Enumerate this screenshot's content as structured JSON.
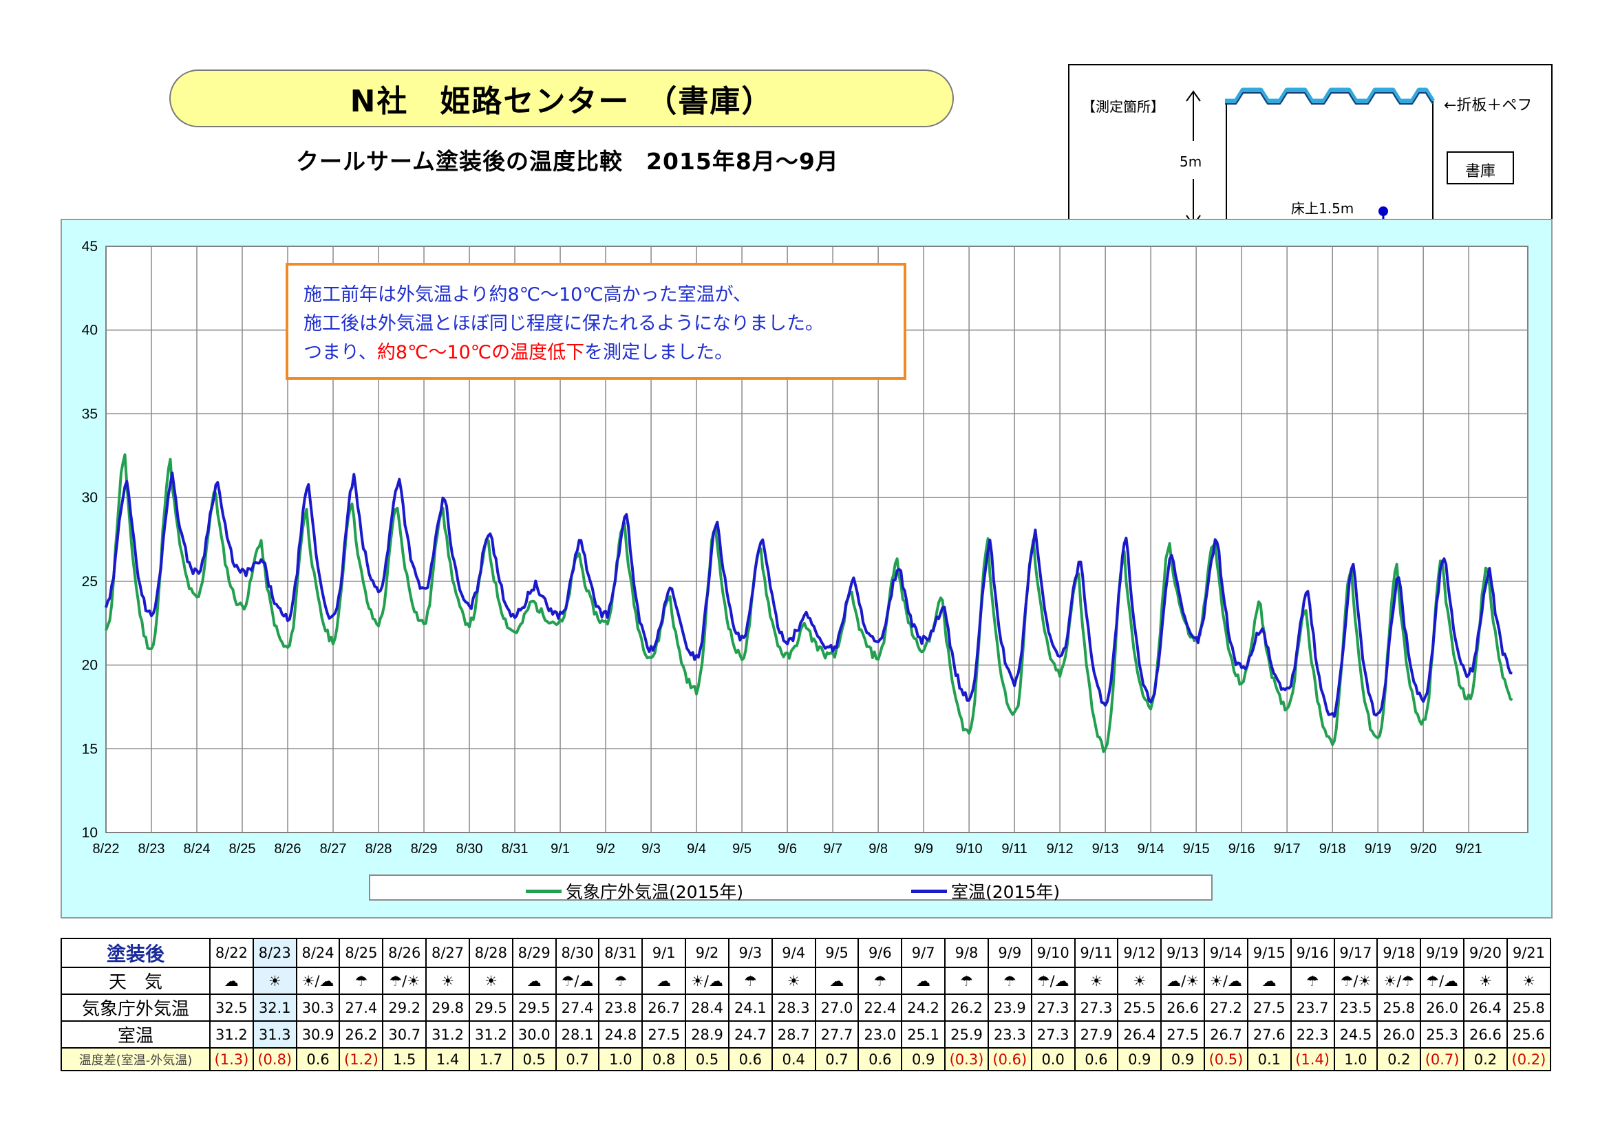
{
  "title": "N社　姫路センター　（書庫）",
  "subtitle": "クールサーム塗装後の温度比較　2015年8月～9月",
  "diagram": {
    "label": "【測定箇所】",
    "roof_label": "←折板＋ペフ",
    "height_label": "5m",
    "room_label": "書庫",
    "sensor_label": "床上1.5m",
    "colors": {
      "roof": "#33aadd",
      "sensor": "#0000cc"
    }
  },
  "callout": {
    "line1": "施工前年は外気温より約8℃～10℃高かった室温が、",
    "line2": "施工後は外気温とほぼ同じ程度に保たれるようになりました。",
    "line3_a": "つまり、",
    "line3_b": "約8℃～10℃の温度低下",
    "line3_c": "を測定しました。"
  },
  "chart_data": {
    "type": "line",
    "title": "",
    "xlabel": "",
    "ylabel": "",
    "ylim": [
      10,
      45
    ],
    "yticks": [
      "45",
      "40",
      "35",
      "30",
      "25",
      "20",
      "15",
      "10"
    ],
    "categories": [
      "8/22",
      "8/23",
      "8/24",
      "8/25",
      "8/26",
      "8/27",
      "8/28",
      "8/29",
      "8/30",
      "8/31",
      "9/1",
      "9/2",
      "9/3",
      "9/4",
      "9/5",
      "9/6",
      "9/7",
      "9/8",
      "9/9",
      "9/10",
      "9/11",
      "9/12",
      "9/13",
      "9/14",
      "9/15",
      "9/16",
      "9/17",
      "9/18",
      "9/19",
      "9/20",
      "9/21"
    ],
    "grid": true,
    "legend_position": "bottom",
    "series": [
      {
        "name": "気象庁外気温(2015年)",
        "color": "#22a050",
        "daily_max": [
          32.5,
          32.1,
          30.3,
          27.4,
          29.2,
          29.8,
          29.5,
          29.5,
          27.4,
          23.8,
          26.7,
          28.4,
          24.1,
          28.3,
          27.0,
          22.4,
          24.2,
          26.2,
          23.9,
          27.3,
          27.3,
          25.5,
          26.6,
          27.2,
          27.5,
          23.7,
          23.5,
          25.8,
          26.0,
          26.4,
          25.8
        ],
        "daily_min": [
          22.0,
          21.0,
          24.0,
          23.5,
          21.0,
          21.5,
          22.5,
          22.5,
          22.5,
          22.0,
          22.5,
          22.5,
          20.5,
          18.5,
          20.5,
          20.5,
          20.5,
          20.5,
          21.0,
          16.0,
          17.0,
          19.5,
          15.0,
          17.5,
          21.5,
          19.0,
          17.5,
          15.5,
          15.5,
          16.5,
          18.0
        ]
      },
      {
        "name": "室温(2015年)",
        "color": "#1a1acc",
        "daily_max": [
          31.2,
          31.3,
          30.9,
          26.2,
          30.7,
          31.2,
          31.2,
          30.0,
          28.1,
          24.8,
          27.5,
          28.9,
          24.7,
          28.7,
          27.7,
          23.0,
          25.1,
          25.9,
          23.3,
          27.3,
          27.9,
          26.4,
          27.5,
          26.7,
          27.6,
          22.3,
          24.5,
          26.0,
          25.3,
          26.6,
          25.6
        ],
        "daily_min": [
          23.5,
          23.0,
          25.5,
          25.5,
          22.8,
          22.8,
          24.5,
          24.5,
          23.5,
          23.0,
          23.0,
          23.0,
          21.0,
          20.5,
          21.5,
          21.5,
          21.0,
          21.3,
          21.5,
          18.0,
          19.0,
          20.5,
          17.8,
          18.0,
          21.5,
          19.8,
          18.5,
          17.0,
          17.0,
          18.0,
          19.5
        ]
      }
    ]
  },
  "legend": {
    "outdoor": "気象庁外気温(2015年)",
    "indoor": "室温(2015年)"
  },
  "table": {
    "header_label": "塗装後",
    "weather_label": "天　気",
    "outdoor_label": "気象庁外気温",
    "indoor_label": "室温",
    "diff_label": "温度差(室温-外気温)",
    "dates": [
      "8/22",
      "8/23",
      "8/24",
      "8/25",
      "8/26",
      "8/27",
      "8/28",
      "8/29",
      "8/30",
      "8/31",
      "9/1",
      "9/2",
      "9/3",
      "9/4",
      "9/5",
      "9/6",
      "9/7",
      "9/8",
      "9/9",
      "9/10",
      "9/11",
      "9/12",
      "9/13",
      "9/14",
      "9/15",
      "9/16",
      "9/17",
      "9/18",
      "9/19",
      "9/20",
      "9/21"
    ],
    "weather": [
      "☁",
      "☀",
      "☀/☁",
      "☂",
      "☂/☀",
      "☀",
      "☀",
      "☁",
      "☂/☁",
      "☂",
      "☁",
      "☀/☁",
      "☂",
      "☀",
      "☁",
      "☂",
      "☁",
      "☂",
      "☂",
      "☂/☁",
      "☀",
      "☀",
      "☁/☀",
      "☀/☁",
      "☁",
      "☂",
      "☂/☀",
      "☀/☂",
      "☂/☁",
      "☀",
      "☀"
    ],
    "outdoor": [
      "32.5",
      "32.1",
      "30.3",
      "27.4",
      "29.2",
      "29.8",
      "29.5",
      "29.5",
      "27.4",
      "23.8",
      "26.7",
      "28.4",
      "24.1",
      "28.3",
      "27.0",
      "22.4",
      "24.2",
      "26.2",
      "23.9",
      "27.3",
      "27.3",
      "25.5",
      "26.6",
      "27.2",
      "27.5",
      "23.7",
      "23.5",
      "25.8",
      "26.0",
      "26.4",
      "25.8"
    ],
    "indoor": [
      "31.2",
      "31.3",
      "30.9",
      "26.2",
      "30.7",
      "31.2",
      "31.2",
      "30.0",
      "28.1",
      "24.8",
      "27.5",
      "28.9",
      "24.7",
      "28.7",
      "27.7",
      "23.0",
      "25.1",
      "25.9",
      "23.3",
      "27.3",
      "27.9",
      "26.4",
      "27.5",
      "26.7",
      "27.6",
      "22.3",
      "24.5",
      "26.0",
      "25.3",
      "26.6",
      "25.6"
    ],
    "diff": [
      "(1.3)",
      "(0.8)",
      "0.6",
      "(1.2)",
      "1.5",
      "1.4",
      "1.7",
      "0.5",
      "0.7",
      "1.0",
      "0.8",
      "0.5",
      "0.6",
      "0.4",
      "0.7",
      "0.6",
      "0.9",
      "(0.3)",
      "(0.6)",
      "0.0",
      "0.6",
      "0.9",
      "0.9",
      "(0.5)",
      "0.1",
      "(1.4)",
      "1.0",
      "0.2",
      "(0.7)",
      "0.2",
      "(0.2)"
    ],
    "colors": {
      "negative": "#d00000",
      "diff_row_bg": "#ffffcc"
    }
  }
}
